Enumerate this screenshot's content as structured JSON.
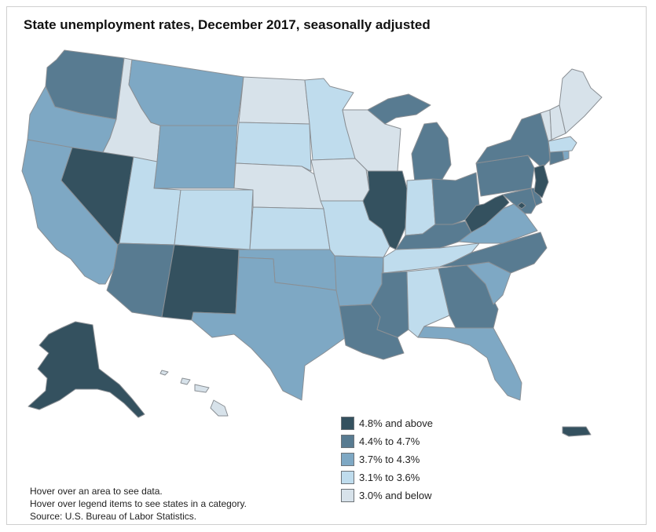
{
  "title": "State unemployment rates, December 2017, seasonally adjusted",
  "colors": {
    "c1": "#34515f",
    "c2": "#587b91",
    "c3": "#7ea8c4",
    "c4": "#bfdced",
    "c5": "#d7e2ea",
    "border": "#8a8f94"
  },
  "legend": [
    {
      "label": "4.8% and above",
      "color": "#34515f"
    },
    {
      "label": "4.4% to 4.7%",
      "color": "#587b91"
    },
    {
      "label": "3.7% to 4.3%",
      "color": "#7ea8c4"
    },
    {
      "label": "3.1% to 3.6%",
      "color": "#bfdced"
    },
    {
      "label": "3.0% and below",
      "color": "#d7e2ea"
    }
  ],
  "notes": [
    "Hover over an area to see data.",
    "Hover over legend items to see states in a category.",
    "Source: U.S. Bureau of Labor Statistics."
  ],
  "categories": {
    "c1": [
      "Nevada",
      "Illinois",
      "New Mexico",
      "West Virginia",
      "New Jersey",
      "Alaska",
      "Puerto Rico",
      "District of Columbia"
    ],
    "c2": [
      "Washington",
      "Arizona",
      "Michigan",
      "Ohio",
      "Kentucky",
      "Pennsylvania",
      "New York",
      "Connecticut",
      "Louisiana",
      "Mississippi",
      "Georgia",
      "North Carolina",
      "Delaware",
      "Maryland"
    ],
    "c3": [
      "Oregon",
      "California",
      "Montana",
      "Wyoming",
      "Texas",
      "Oklahoma",
      "Arkansas",
      "Florida",
      "South Carolina",
      "Virginia",
      "Rhode Island"
    ],
    "c4": [
      "Utah",
      "Colorado",
      "South Dakota",
      "Kansas",
      "Minnesota",
      "Missouri",
      "Indiana",
      "Tennessee",
      "Alabama",
      "Massachusetts"
    ],
    "c5": [
      "Idaho",
      "North Dakota",
      "Nebraska",
      "Iowa",
      "Wisconsin",
      "Vermont",
      "New Hampshire",
      "Maine",
      "Hawaii"
    ]
  }
}
